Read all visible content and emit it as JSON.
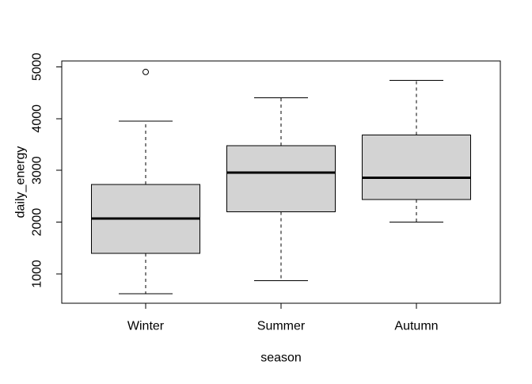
{
  "figure": {
    "background": "#ffffff"
  },
  "chart_data": {
    "type": "boxplot",
    "title": "",
    "xlabel": "season",
    "ylabel": "daily_energy",
    "categories": [
      "Winter",
      "Summer",
      "Autumn"
    ],
    "positions": [
      1,
      2,
      3
    ],
    "xlim": [
      0.38,
      3.62
    ],
    "ylim": [
      434,
      5113
    ],
    "yticks": [
      1000,
      2000,
      3000,
      4000,
      5000
    ],
    "grid": false,
    "legend": "none",
    "box_width": 0.8,
    "staple_width": 0.4,
    "series": [
      {
        "label": "Winter",
        "whisker_low": 620,
        "q1": 1400,
        "median": 2070,
        "q3": 2730,
        "whisker_high": 3950,
        "outliers": [
          4900
        ]
      },
      {
        "label": "Summer",
        "whisker_low": 870,
        "q1": 2200,
        "median": 2960,
        "q3": 3480,
        "whisker_high": 4400,
        "outliers": []
      },
      {
        "label": "Autumn",
        "whisker_low": 2000,
        "q1": 2440,
        "median": 2860,
        "q3": 3680,
        "whisker_high": 4740,
        "outliers": []
      }
    ],
    "colors": {
      "box_fill": "#d3d3d3",
      "stroke": "#000000",
      "background": "#ffffff"
    }
  }
}
